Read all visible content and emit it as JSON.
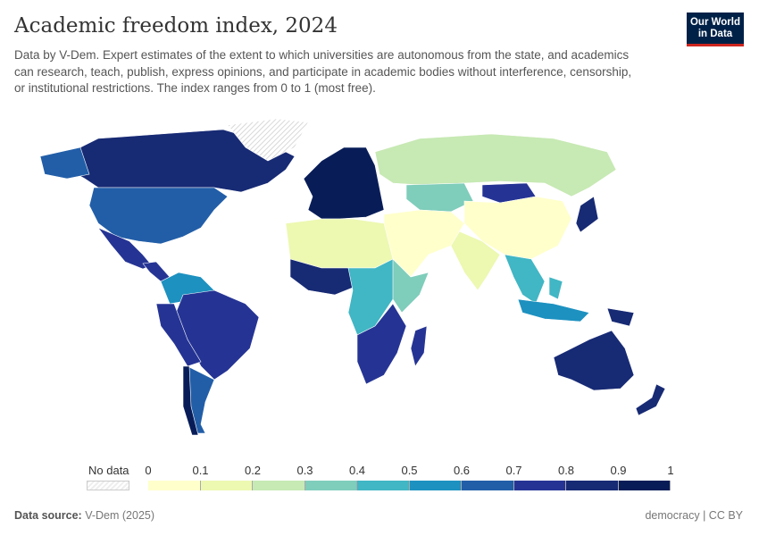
{
  "header": {
    "title": "Academic freedom index, 2024",
    "subtitle": "Data by V-Dem. Expert estimates of the extent to which universities are autonomous from the state, and academics can research, teach, publish, express opinions, and participate in academic bodies without interference, censorship, or institutional restrictions. The index ranges from 0 to 1 (most free).",
    "logo": "Our World in Data"
  },
  "chart_data": {
    "type": "choropleth",
    "title": "Academic freedom index, 2024",
    "legend": {
      "no_data_label": "No data",
      "ticks": [
        "0",
        "0.1",
        "0.2",
        "0.3",
        "0.4",
        "0.5",
        "0.6",
        "0.7",
        "0.8",
        "0.9",
        "1"
      ],
      "colors": [
        "#ffffcc",
        "#edf8b1",
        "#c7e9b4",
        "#7fcdbb",
        "#41b6c4",
        "#1d91c0",
        "#225ea8",
        "#253494",
        "#172a74",
        "#081d58"
      ]
    },
    "regions": [
      {
        "name": "Canada",
        "value": 0.85
      },
      {
        "name": "United States",
        "value": 0.65
      },
      {
        "name": "Mexico",
        "value": 0.75
      },
      {
        "name": "Greenland",
        "value": null
      },
      {
        "name": "Central America",
        "value": 0.7
      },
      {
        "name": "Colombia/Venezuela",
        "value": 0.5
      },
      {
        "name": "Brazil",
        "value": 0.75
      },
      {
        "name": "Peru/Bolivia",
        "value": 0.75
      },
      {
        "name": "Argentina",
        "value": 0.65
      },
      {
        "name": "Chile",
        "value": 0.9
      },
      {
        "name": "Western Europe",
        "value": 0.9
      },
      {
        "name": "Russia",
        "value": 0.2
      },
      {
        "name": "Kazakhstan",
        "value": 0.3
      },
      {
        "name": "Mongolia",
        "value": 0.75
      },
      {
        "name": "China",
        "value": 0.05
      },
      {
        "name": "Japan",
        "value": 0.85
      },
      {
        "name": "India",
        "value": 0.15
      },
      {
        "name": "Middle East",
        "value": 0.05
      },
      {
        "name": "North Africa",
        "value": 0.1
      },
      {
        "name": "West Africa",
        "value": 0.8
      },
      {
        "name": "Central Africa",
        "value": 0.4
      },
      {
        "name": "East Africa",
        "value": 0.3
      },
      {
        "name": "Southern Africa",
        "value": 0.75
      },
      {
        "name": "Madagascar",
        "value": 0.75
      },
      {
        "name": "Southeast Asia",
        "value": 0.45
      },
      {
        "name": "Indonesia",
        "value": 0.55
      },
      {
        "name": "Australia",
        "value": 0.85
      },
      {
        "name": "New Zealand",
        "value": 0.85
      },
      {
        "name": "Papua New Guinea",
        "value": 0.85
      }
    ]
  },
  "footer": {
    "source_label": "Data source:",
    "source": "V-Dem (2025)",
    "license": "democracy | CC BY"
  }
}
